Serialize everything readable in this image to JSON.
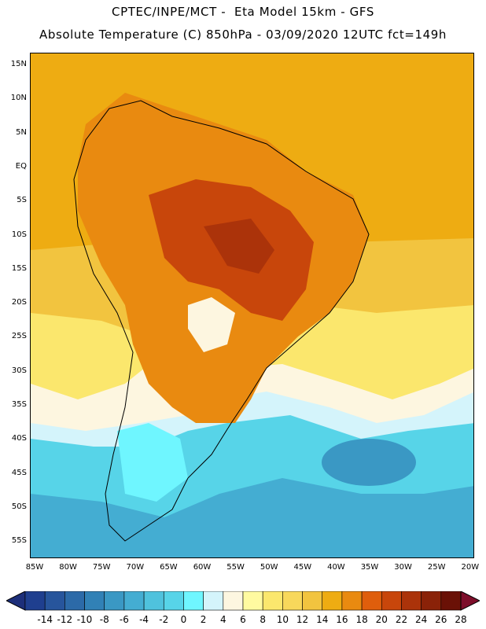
{
  "header": {
    "line1": "CPTEC/INPE/MCT -  Eta Model 15km - GFS",
    "line2": "Absolute Temperature (C) 850hPa - 03/09/2020 12UTC fct=149h"
  },
  "axes": {
    "lat_labels": [
      "15N",
      "10N",
      "5N",
      "EQ",
      "5S",
      "10S",
      "15S",
      "20S",
      "25S",
      "30S",
      "35S",
      "40S",
      "45S",
      "50S",
      "55S"
    ],
    "lon_labels": [
      "85W",
      "80W",
      "75W",
      "70W",
      "65W",
      "60W",
      "55W",
      "50W",
      "45W",
      "40W",
      "35W",
      "30W",
      "25W",
      "20W"
    ]
  },
  "colorbar": {
    "tick_labels": [
      "-14",
      "-12",
      "-10",
      "-8",
      "-6",
      "-4",
      "-2",
      "0",
      "2",
      "4",
      "6",
      "8",
      "10",
      "12",
      "14",
      "16",
      "18",
      "20",
      "22",
      "24",
      "26",
      "28"
    ],
    "colors": [
      "#1f3f8f",
      "#27559c",
      "#2c6aa8",
      "#3181b6",
      "#3a98c4",
      "#44add2",
      "#4fc2dd",
      "#57d4e8",
      "#6ff6ff",
      "#d4f4fb",
      "#fdf6e0",
      "#fffaa0",
      "#fbe76d",
      "#f8d85b",
      "#f2c43f",
      "#eeac12",
      "#e98a10",
      "#df5e0c",
      "#c8460b",
      "#ab330a",
      "#8a2208",
      "#6a1106",
      "#7d0e2a"
    ],
    "under_color": "#1d2f7a",
    "over_color": "#7d0e2a"
  },
  "map": {
    "background_colors": {
      "tropical_ocean": "#eeac12",
      "warm_land": "#e98a10",
      "hot_core": "#c8460b",
      "subtropical": "#f2c43f",
      "mid": "#fbe76d",
      "cool_band": "#fdf6e0",
      "cold_ocean": "#57d4e8",
      "colder": "#44add2",
      "coldest": "#3a98c4"
    }
  }
}
